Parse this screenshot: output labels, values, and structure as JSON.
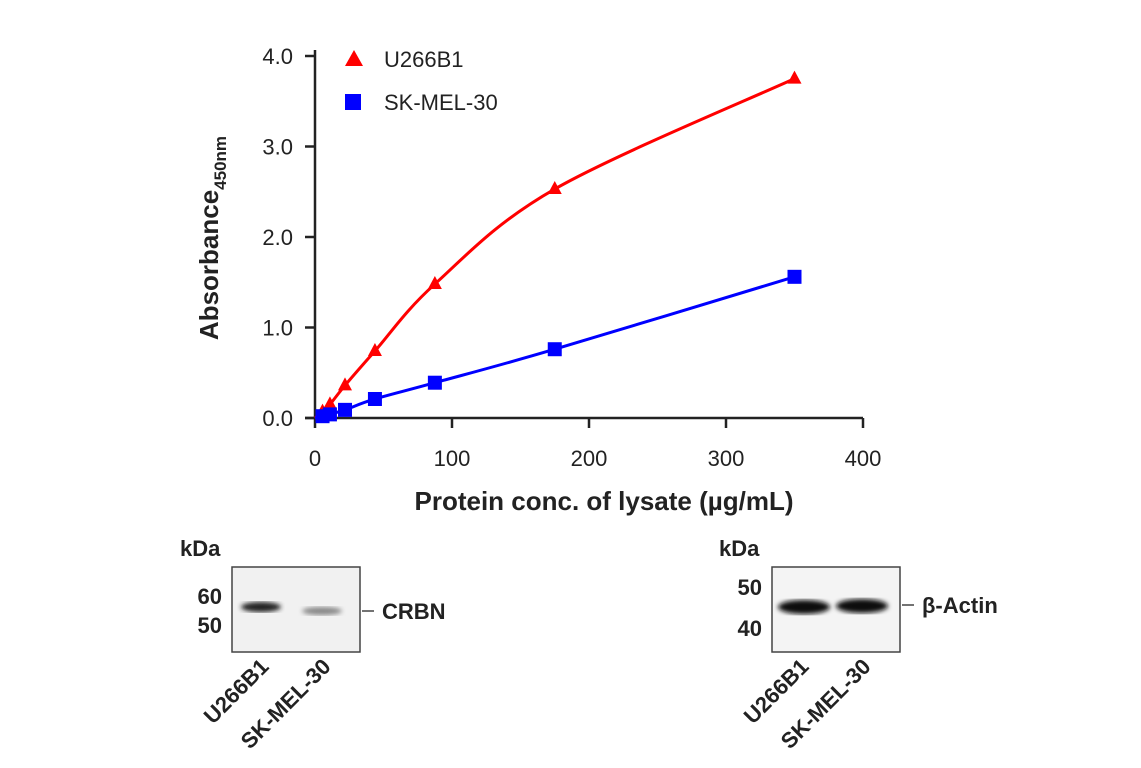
{
  "chart_data": {
    "type": "line",
    "xlabel": "Protein conc. of lysate (µg/mL)",
    "ylabel": "Absorbance",
    "ylabel_sub": "450nm",
    "xlim": [
      0,
      400
    ],
    "ylim": [
      0,
      4.0
    ],
    "xticks": [
      "0",
      "100",
      "200",
      "300",
      "400"
    ],
    "yticks": [
      "0.0",
      "1.0",
      "2.0",
      "3.0",
      "4.0"
    ],
    "grid": false,
    "legend": "top-left",
    "x": [
      5.5,
      10.9,
      21.9,
      43.75,
      87.5,
      175,
      350
    ],
    "series": [
      {
        "name": "U266B1",
        "marker": "triangle",
        "color": "#ff0000",
        "values": [
          0.07,
          0.15,
          0.36,
          0.74,
          1.48,
          2.53,
          3.75
        ]
      },
      {
        "name": "SK-MEL-30",
        "marker": "square",
        "color": "#0000ff",
        "values": [
          0.02,
          0.04,
          0.09,
          0.21,
          0.39,
          0.76,
          1.56
        ]
      }
    ]
  },
  "blots": [
    {
      "unit": "kDa",
      "markers": [
        "60",
        "50"
      ],
      "target": "CRBN",
      "lanes": [
        "U266B1",
        "SK-MEL-30"
      ]
    },
    {
      "unit": "kDa",
      "markers": [
        "50",
        "40"
      ],
      "target": "β-Actin",
      "lanes": [
        "U266B1",
        "SK-MEL-30"
      ]
    }
  ]
}
